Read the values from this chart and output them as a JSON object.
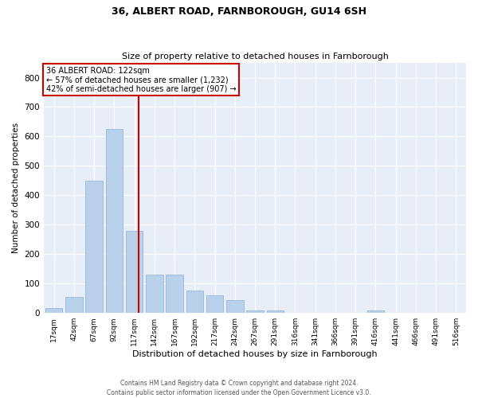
{
  "title": "36, ALBERT ROAD, FARNBOROUGH, GU14 6SH",
  "subtitle": "Size of property relative to detached houses in Farnborough",
  "xlabel": "Distribution of detached houses by size in Farnborough",
  "ylabel": "Number of detached properties",
  "bar_color": "#b8d0ea",
  "bar_edge_color": "#8ab0d8",
  "background_color": "#e8eef8",
  "grid_color": "#ffffff",
  "categories": [
    "17sqm",
    "42sqm",
    "67sqm",
    "92sqm",
    "117sqm",
    "142sqm",
    "167sqm",
    "192sqm",
    "217sqm",
    "242sqm",
    "267sqm",
    "291sqm",
    "316sqm",
    "341sqm",
    "366sqm",
    "391sqm",
    "416sqm",
    "441sqm",
    "466sqm",
    "491sqm",
    "516sqm"
  ],
  "values": [
    17,
    55,
    450,
    625,
    280,
    130,
    130,
    75,
    60,
    45,
    10,
    10,
    0,
    0,
    0,
    0,
    10,
    0,
    0,
    0,
    0
  ],
  "ylim": [
    0,
    850
  ],
  "yticks": [
    0,
    100,
    200,
    300,
    400,
    500,
    600,
    700,
    800
  ],
  "red_line_x": 4.2,
  "property_label": "36 ALBERT ROAD: 122sqm",
  "annotation_line1": "← 57% of detached houses are smaller (1,232)",
  "annotation_line2": "42% of semi-detached houses are larger (907) →",
  "annotation_box_color": "#ffffff",
  "annotation_box_edge": "#cc0000",
  "red_line_color": "#cc0000",
  "footer1": "Contains HM Land Registry data © Crown copyright and database right 2024.",
  "footer2": "Contains public sector information licensed under the Open Government Licence v3.0."
}
